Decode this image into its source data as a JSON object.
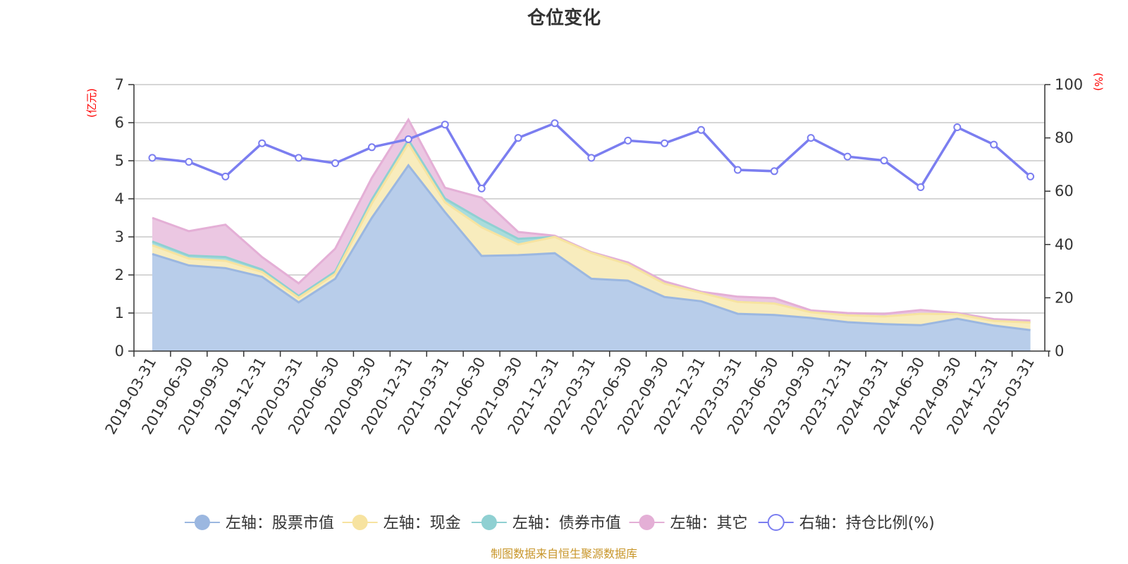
{
  "chart_data": {
    "type": "area",
    "title": "仓位变化",
    "left_unit": "(亿元)",
    "right_unit": "(%)",
    "categories": [
      "2019-03-31",
      "2019-06-30",
      "2019-09-30",
      "2019-12-31",
      "2020-03-31",
      "2020-06-30",
      "2020-09-30",
      "2020-12-31",
      "2021-03-31",
      "2021-06-30",
      "2021-09-30",
      "2021-12-31",
      "2022-03-31",
      "2022-06-30",
      "2022-09-30",
      "2022-12-31",
      "2023-03-31",
      "2023-06-30",
      "2023-09-30",
      "2023-12-31",
      "2024-03-31",
      "2024-06-30",
      "2024-09-30",
      "2024-12-31",
      "2025-03-31"
    ],
    "left_axis": {
      "min": 0,
      "max": 7,
      "ticks": [
        "0",
        "1",
        "2",
        "3",
        "4",
        "5",
        "6",
        "7"
      ]
    },
    "right_axis": {
      "min": 0,
      "max": 100,
      "ticks": [
        "0",
        "20",
        "40",
        "60",
        "80",
        "100"
      ]
    },
    "series": [
      {
        "name": "左轴：股票市值",
        "axis": "left",
        "stack": true,
        "color": "#9bb7e0",
        "fill": "#b8cdea",
        "values": [
          2.55,
          2.25,
          2.18,
          1.95,
          1.28,
          1.9,
          3.5,
          4.88,
          3.65,
          2.5,
          2.52,
          2.57,
          1.9,
          1.85,
          1.42,
          1.31,
          0.98,
          0.95,
          0.87,
          0.76,
          0.71,
          0.68,
          0.85,
          0.67,
          0.55
        ]
      },
      {
        "name": "左轴：现金",
        "axis": "left",
        "stack": true,
        "color": "#f7e3a0",
        "fill": "#f8ecbd",
        "values": [
          0.23,
          0.18,
          0.19,
          0.13,
          0.12,
          0.13,
          0.38,
          0.57,
          0.26,
          0.75,
          0.28,
          0.43,
          0.68,
          0.43,
          0.35,
          0.22,
          0.31,
          0.3,
          0.15,
          0.18,
          0.2,
          0.3,
          0.12,
          0.12,
          0.2
        ]
      },
      {
        "name": "左轴：债券市值",
        "axis": "left",
        "stack": true,
        "color": "#8fd0d2",
        "fill": "#a9dcdc",
        "values": [
          0.1,
          0.08,
          0.1,
          0.06,
          0.05,
          0.06,
          0.1,
          0.1,
          0.1,
          0.2,
          0.15,
          0,
          0,
          0,
          0,
          0,
          0,
          0,
          0,
          0,
          0,
          0,
          0,
          0,
          0
        ]
      },
      {
        "name": "左轴：其它",
        "axis": "left",
        "stack": true,
        "color": "#e4afd6",
        "fill": "#ebc7e2",
        "values": [
          0.62,
          0.64,
          0.85,
          0.33,
          0.33,
          0.6,
          0.57,
          0.53,
          0.28,
          0.58,
          0.18,
          0.03,
          0.02,
          0.05,
          0.06,
          0.03,
          0.14,
          0.14,
          0.05,
          0.06,
          0.07,
          0.1,
          0.03,
          0.05,
          0.05
        ]
      },
      {
        "name": "右轴：持仓比例(%)",
        "axis": "right",
        "type": "line",
        "color": "#7b7ef0",
        "values": [
          72.5,
          71.0,
          65.5,
          78.0,
          72.5,
          70.5,
          76.5,
          79.5,
          85.0,
          61.0,
          80.0,
          85.5,
          72.5,
          79.0,
          78.0,
          83.0,
          68.0,
          67.5,
          80.0,
          73.0,
          71.5,
          61.5,
          84.0,
          77.5,
          65.5
        ]
      }
    ],
    "grid": true,
    "legend_position": "bottom"
  },
  "footer": {
    "source_text": "制图数据来自恒生聚源数据库"
  }
}
